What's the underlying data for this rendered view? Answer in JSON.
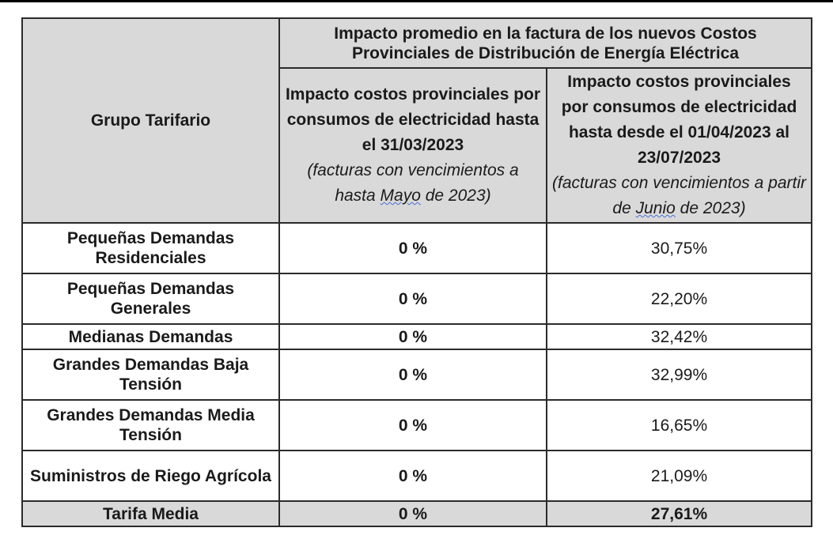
{
  "table": {
    "group_header": "Grupo Tarifario",
    "impact_header": "Impacto promedio en la factura de los nuevos Costos Provinciales de Distribución de Energía Eléctrica",
    "col2_header": "Impacto costos provinciales por consumos de electricidad hasta el 31/03/2023",
    "col2_note_before": "(facturas con vencimientos a hasta ",
    "col2_note_underlined": "Mayo",
    "col2_note_after": " de 2023)",
    "col3_header": "Impacto costos provinciales por consumos de electricidad hasta desde el 01/04/2023 al 23/07/2023",
    "col3_note_before": "(facturas con vencimientos a partir de ",
    "col3_note_underlined": "Junio",
    "col3_note_after": " de 2023)",
    "rows": [
      {
        "group": "Pequeñas Demandas Residenciales",
        "before": "0 %",
        "after": "30,75%"
      },
      {
        "group": "Pequeñas Demandas Generales",
        "before": "0 %",
        "after": "22,20%"
      },
      {
        "group": "Medianas Demandas",
        "before": "0 %",
        "after": "32,42%"
      },
      {
        "group": "Grandes Demandas Baja Tensión",
        "before": "0 %",
        "after": "32,99%"
      },
      {
        "group": "Grandes Demandas Media Tensión",
        "before": "0 %",
        "after": "16,65%"
      },
      {
        "group": "Suministros de Riego Agrícola",
        "before": "0 %",
        "after": "21,09%"
      }
    ],
    "total": {
      "group": "Tarifa Media",
      "before": "0 %",
      "after": "27,61%"
    }
  }
}
